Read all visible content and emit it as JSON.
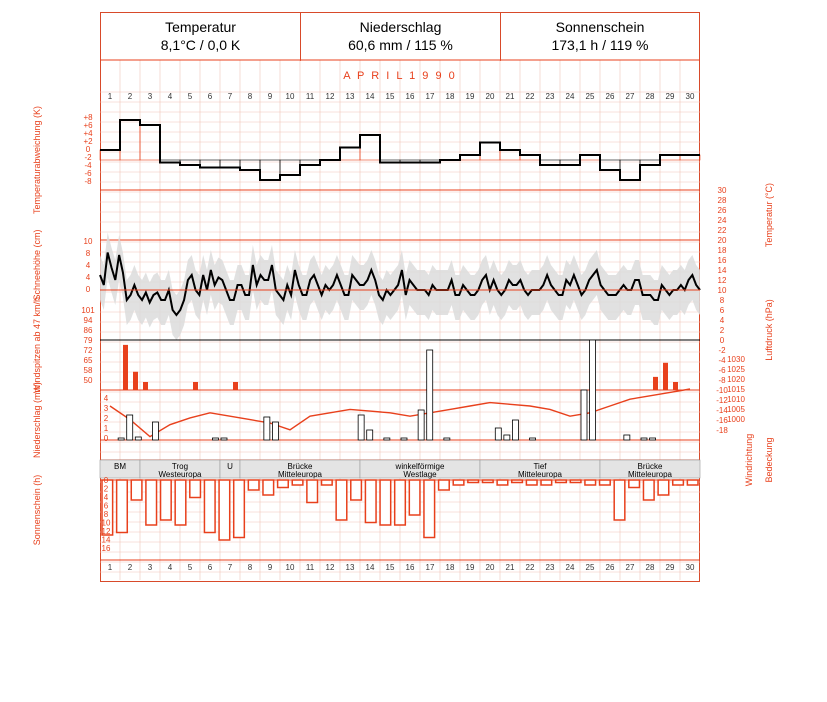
{
  "header": {
    "temp_title": "Temperatur",
    "temp_value": "8,1°C / 0,0 K",
    "precip_title": "Niederschlag",
    "precip_value": "60,6 mm / 115 %",
    "sun_title": "Sonnenschein",
    "sun_value": "173,1 h / 119 %"
  },
  "month_label": "APRIL 1990",
  "colors": {
    "accent": "#e8401c",
    "grid": "#f0c4b8",
    "shade": "#dcdcdc",
    "line": "#000000"
  },
  "chart_data": {
    "type": "line",
    "days": [
      1,
      2,
      3,
      4,
      5,
      6,
      7,
      8,
      9,
      10,
      11,
      12,
      13,
      14,
      15,
      16,
      17,
      18,
      19,
      20,
      21,
      22,
      23,
      24,
      25,
      26,
      27,
      28,
      29,
      30
    ],
    "axis_labels": {
      "temp_anomaly": "Temperaturabweichung (K)",
      "snow": "Schneehöhe (cm)",
      "wind": "Windspitzen ab 47 km/h",
      "precip": "Niederschlag (mm)",
      "sunshine": "Sonnenschein (h)",
      "temperature": "Temperatur (°C)",
      "pressure": "Luftdruck (hPa)",
      "wind_dir": "Windrichtung",
      "cloud": "Bedeckung"
    },
    "temp_anomaly_ticks": [
      "+8",
      "+6",
      "+4",
      "+2",
      "0",
      "-2",
      "-4",
      "-6",
      "-8"
    ],
    "temp_anomaly_K": [
      2,
      8,
      7,
      -0.5,
      -1,
      -1.5,
      -1.5,
      -2,
      -4,
      -3,
      -1,
      0,
      2.5,
      5,
      -0.5,
      -0.5,
      -0.5,
      0,
      1,
      3.5,
      2,
      1,
      -1,
      -1,
      1,
      -2,
      -4,
      -1,
      1,
      1
    ],
    "snow_ticks": [
      "10",
      "8",
      "4",
      "4",
      "0",
      "101",
      "94",
      "86",
      "79",
      "72",
      "65",
      "58",
      "50"
    ],
    "temperature_ticks": [
      "30",
      "28",
      "26",
      "24",
      "22",
      "20",
      "18",
      "16",
      "14",
      "12",
      "10",
      "8",
      "6",
      "4",
      "2",
      "0",
      "-2",
      "-4",
      "-6",
      "-8",
      "-10",
      "-12",
      "-14",
      "-16",
      "-18"
    ],
    "pressure_ticks": [
      "1030",
      "1025",
      "1020",
      "1015",
      "1010",
      "1005",
      "1000"
    ],
    "temperature_C": [
      6,
      2,
      15,
      9,
      4,
      14,
      7,
      -4,
      -2,
      2,
      -2,
      -4,
      -1,
      -5,
      -2,
      -1,
      -4,
      -4,
      0,
      -8,
      -10,
      -8,
      -4,
      4,
      6,
      0,
      -2,
      6,
      0,
      8,
      2,
      5,
      4,
      0,
      -4,
      -4,
      2,
      2,
      -2,
      -2,
      10,
      2,
      6,
      4,
      4,
      10,
      0,
      -2,
      -4,
      2,
      -2,
      8,
      2,
      -2,
      -2,
      4,
      6,
      2,
      -2,
      2,
      0,
      2,
      6,
      2,
      -2,
      -2,
      6,
      4,
      2,
      2,
      4,
      8,
      4,
      -2,
      -4,
      0,
      -2,
      0,
      2,
      8,
      -2,
      4,
      2,
      0,
      0,
      0,
      -2,
      2,
      0,
      0,
      0,
      0,
      4,
      -2,
      -2,
      2,
      0,
      -2,
      -2,
      0,
      4,
      6,
      0,
      4,
      0,
      -2,
      0,
      4,
      2,
      2,
      4,
      0,
      -2,
      0,
      0,
      0,
      2,
      6,
      2,
      0,
      -2,
      -2,
      4,
      2,
      6,
      2,
      -2,
      0,
      4,
      6,
      8,
      2,
      0,
      -2,
      -2,
      -2,
      0,
      2,
      0,
      0,
      4,
      4,
      -2,
      -2,
      -2,
      -4,
      -4,
      2,
      0,
      -2,
      0,
      0,
      2,
      0,
      4,
      6,
      2,
      0
    ],
    "pressure_ticks_left": [
      "101",
      "94",
      "86",
      "79",
      "72",
      "65",
      "58",
      "50"
    ],
    "wind_gusts_kmh": [
      0,
      0,
      79,
      58,
      50,
      0,
      0,
      0,
      0,
      50,
      0,
      0,
      0,
      50,
      0,
      0,
      0,
      0,
      0,
      0,
      0,
      0,
      0,
      0,
      0,
      0,
      0,
      0,
      0,
      0,
      0,
      0,
      0,
      0,
      0,
      0,
      0,
      0,
      0,
      0,
      0,
      0,
      0,
      0,
      0,
      0,
      0,
      0,
      0,
      0,
      0,
      0,
      0,
      0,
      0,
      54,
      65,
      50,
      0,
      0
    ],
    "precip_ticks": [
      "4",
      "3",
      "2",
      "1",
      "0"
    ],
    "precip_mm": [
      0,
      0,
      0.2,
      2.5,
      0.3,
      0,
      1.8,
      0,
      0,
      0,
      0,
      0,
      0,
      0.2,
      0.2,
      0,
      0,
      0,
      0,
      2.3,
      1.8,
      0,
      0,
      0,
      0,
      0,
      0,
      0,
      0,
      0,
      2.5,
      1,
      0,
      0.2,
      0,
      0.2,
      0,
      3,
      9,
      0,
      0.2,
      0,
      0,
      0,
      0,
      0,
      1.2,
      0.5,
      2,
      0,
      0.2,
      0,
      0,
      0,
      0,
      0,
      5,
      12,
      0,
      0,
      0,
      0.5,
      0,
      0.2,
      0.2,
      0,
      0,
      0,
      0,
      0
    ],
    "weather_types": [
      "BM",
      "Trog Westeuropa",
      "U",
      "Brücke Mitteleuropa",
      "winkelförmige Westlage",
      "Tief Mitteleuropa",
      "Brücke Mitteleuropa"
    ],
    "sunshine_ticks": [
      "0",
      "2",
      "4",
      "6",
      "8",
      "10",
      "12",
      "14",
      "16"
    ],
    "sunshine_h": [
      11,
      10.5,
      4,
      9,
      8,
      9,
      3.5,
      10.5,
      12,
      11.5,
      2,
      3,
      1.5,
      1,
      4.5,
      1,
      8,
      4,
      8.5,
      9,
      9,
      7,
      11.5,
      2,
      1,
      0.5,
      0.5,
      1,
      0.5,
      1,
      1,
      0.5,
      0.5,
      1,
      1,
      8,
      1.5,
      4,
      3,
      1,
      1
    ]
  }
}
